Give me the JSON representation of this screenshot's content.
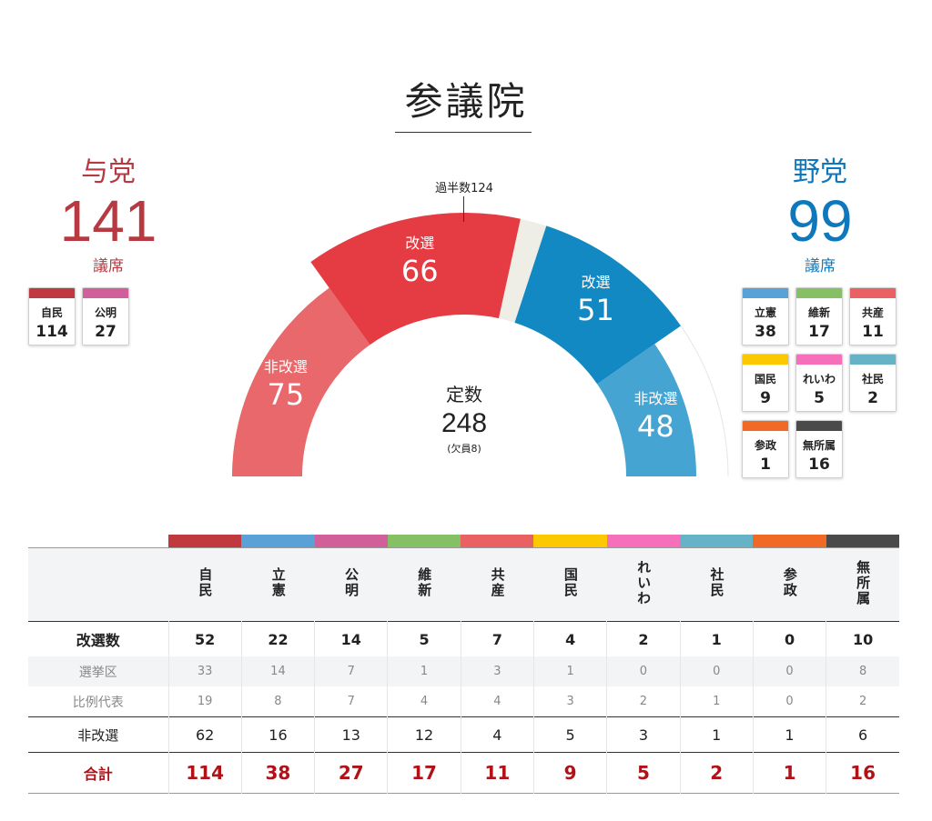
{
  "title": "参議院",
  "ruling": {
    "label": "与党",
    "seats": "141",
    "unit": "議席"
  },
  "opposition": {
    "label": "野党",
    "seats": "99",
    "unit": "議席"
  },
  "majority_label": "過半数124",
  "center": {
    "label": "定数",
    "total": "248",
    "vacancy": "(欠員8)"
  },
  "chart_data": {
    "type": "semicircle-donut",
    "title": "参議院",
    "total_seats": 248,
    "vacancies": 8,
    "majority": 124,
    "segments": [
      {
        "group": "与党",
        "label": "非改選",
        "value": 75,
        "color": "#e8686b",
        "ring": "inner"
      },
      {
        "group": "与党",
        "label": "改選",
        "value": 66,
        "color": "#e53c44",
        "ring": "outer"
      },
      {
        "group": "欠員",
        "label": "",
        "value": 8,
        "color": "#efeee6",
        "ring": "outer"
      },
      {
        "group": "野党",
        "label": "改選",
        "value": 51,
        "color": "#1389c4",
        "ring": "outer"
      },
      {
        "group": "野党",
        "label": "非改選",
        "value": 48,
        "color": "#45a4d2",
        "ring": "inner"
      }
    ]
  },
  "ruling_cards": [
    {
      "name": "自民",
      "seats": "114",
      "color": "#c0393f"
    },
    {
      "name": "公明",
      "seats": "27",
      "color": "#d1609a"
    }
  ],
  "opposition_cards": [
    {
      "name": "立憲",
      "seats": "38",
      "color": "#5aa1d8"
    },
    {
      "name": "維新",
      "seats": "17",
      "color": "#86c064"
    },
    {
      "name": "共産",
      "seats": "11",
      "color": "#e96163"
    },
    {
      "name": "国民",
      "seats": "9",
      "color": "#fcc800"
    },
    {
      "name": "れいわ",
      "seats": "5",
      "color": "#f66fbb"
    },
    {
      "name": "社民",
      "seats": "2",
      "color": "#66b3c7"
    },
    {
      "name": "参政",
      "seats": "1",
      "color": "#f06a26"
    },
    {
      "name": "無所属",
      "seats": "16",
      "color": "#4a4a4a"
    }
  ],
  "table": {
    "parties": [
      {
        "name": "自民",
        "color": "#c0393f"
      },
      {
        "name": "立憲",
        "color": "#5aa1d8"
      },
      {
        "name": "公明",
        "color": "#d1609a"
      },
      {
        "name": "維新",
        "color": "#86c064"
      },
      {
        "name": "共産",
        "color": "#e96163"
      },
      {
        "name": "国民",
        "color": "#fcc800"
      },
      {
        "name": "れいわ",
        "color": "#f66fbb"
      },
      {
        "name": "社民",
        "color": "#66b3c7"
      },
      {
        "name": "参政",
        "color": "#f06a26"
      },
      {
        "name": "無所属",
        "color": "#4a4a4a"
      }
    ],
    "rows": [
      {
        "label": "改選数",
        "style": "main",
        "values": [
          "52",
          "22",
          "14",
          "5",
          "7",
          "4",
          "2",
          "1",
          "0",
          "10"
        ]
      },
      {
        "label": "選挙区",
        "style": "sub shade",
        "values": [
          "33",
          "14",
          "7",
          "1",
          "3",
          "1",
          "0",
          "0",
          "0",
          "8"
        ]
      },
      {
        "label": "比例代表",
        "style": "sub2",
        "values": [
          "19",
          "8",
          "7",
          "4",
          "4",
          "3",
          "2",
          "1",
          "0",
          "2"
        ]
      },
      {
        "label": "非改選",
        "style": "nonelect",
        "values": [
          "62",
          "16",
          "13",
          "12",
          "4",
          "5",
          "3",
          "1",
          "1",
          "6"
        ]
      },
      {
        "label": "合計",
        "style": "total",
        "values": [
          "114",
          "38",
          "27",
          "17",
          "11",
          "9",
          "5",
          "2",
          "1",
          "16"
        ]
      }
    ]
  }
}
